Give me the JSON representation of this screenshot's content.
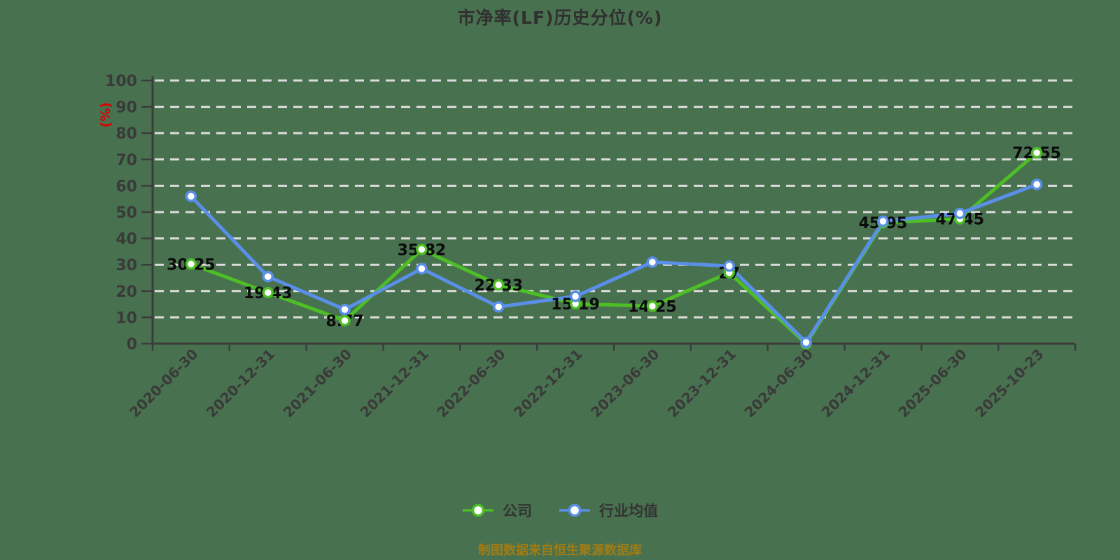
{
  "page": {
    "background": "#48714F"
  },
  "header": {
    "title": "市净率(LF)历史分位(%)"
  },
  "footer": {
    "text": "制图数据来自恒生聚源数据库",
    "color": "#A17C15"
  },
  "chart_data": {
    "type": "line",
    "title": "市净率(LF)历史分位(%)",
    "xlabel": "",
    "ylabel": "(%)",
    "ylabel_color": "#DD0000",
    "ylim": [
      0,
      100
    ],
    "yticks": [
      0,
      10,
      20,
      30,
      40,
      50,
      60,
      70,
      80,
      90,
      100
    ],
    "grid": "dashed-horizontal-white",
    "legend_position": "bottom",
    "categories": [
      "2020-06-30",
      "2020-12-31",
      "2021-06-30",
      "2021-12-31",
      "2022-06-30",
      "2022-12-31",
      "2023-06-30",
      "2023-12-31",
      "2024-06-30",
      "2024-12-31",
      "2025-06-30",
      "2025-10-23"
    ],
    "series": [
      {
        "name": "公司",
        "color": "#4DBE26",
        "values": [
          30.25,
          19.43,
          8.77,
          35.82,
          22.33,
          15.19,
          14.25,
          27,
          0,
          45.95,
          47.45,
          72.55
        ],
        "labels": [
          "30.25",
          "19.43",
          "8.77",
          "35.82",
          "22.33",
          "15.19",
          "14.25",
          "27",
          "0",
          "45.95",
          "47.45",
          "72.55"
        ],
        "show_labels": true
      },
      {
        "name": "行业均值",
        "color": "#5A8FE8",
        "values": [
          56,
          25.5,
          13,
          28.5,
          14,
          18,
          31,
          29.5,
          0.5,
          46.5,
          49.5,
          60.5
        ],
        "labels": [],
        "show_labels": false
      }
    ],
    "colors": {
      "gridline": "#DCDCDC",
      "axis": "#3C3C3C",
      "tick_label": "#3A3A3A",
      "data_label": "#0B0B0B",
      "marker_fill": "#FFFFFF"
    }
  }
}
